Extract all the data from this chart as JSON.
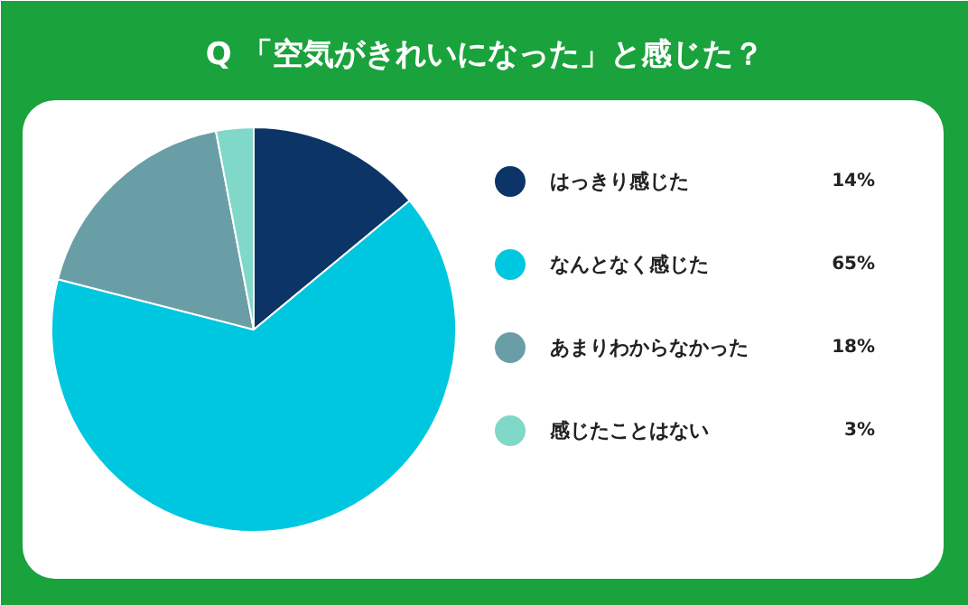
{
  "chart_data": {
    "type": "pie",
    "title": "Q 「空気がきれいになった」と感じた？",
    "categories": [
      "はっきり感じた",
      "なんとなく感じた",
      "あまりわからなかった",
      "感じたことはない"
    ],
    "values": [
      14,
      65,
      18,
      3
    ],
    "colors": [
      "#0c3466",
      "#00c7e0",
      "#6a9ea6",
      "#7fd8c8"
    ],
    "value_labels": [
      "14%",
      "65%",
      "18%",
      "3%"
    ],
    "legend": "right"
  }
}
